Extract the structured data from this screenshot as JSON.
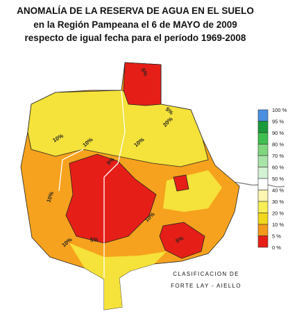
{
  "title": [
    "ANOMALÍA DE LA RESERVA DE AGUA EN EL SUELO",
    "en la Región Pampeana el 6 de MAYO de 2009",
    "respecto de igual fecha para el período 1969-2008"
  ],
  "legend": [
    "100 %",
    "95 %",
    "90 %",
    "80 %",
    "70 %",
    "60 %",
    "50 %",
    "40 %",
    "30 %",
    "20 %",
    "10 %",
    "5 %",
    "0 %"
  ],
  "classification": [
    "CLASIFICACION DE",
    "FORTE LAY - AIELLO"
  ],
  "map_labels": [
    "5%",
    "5%",
    "10%",
    "10%",
    "20%",
    "10%",
    "5%",
    "10%",
    "10%",
    "5%",
    "5%",
    "10%"
  ]
}
